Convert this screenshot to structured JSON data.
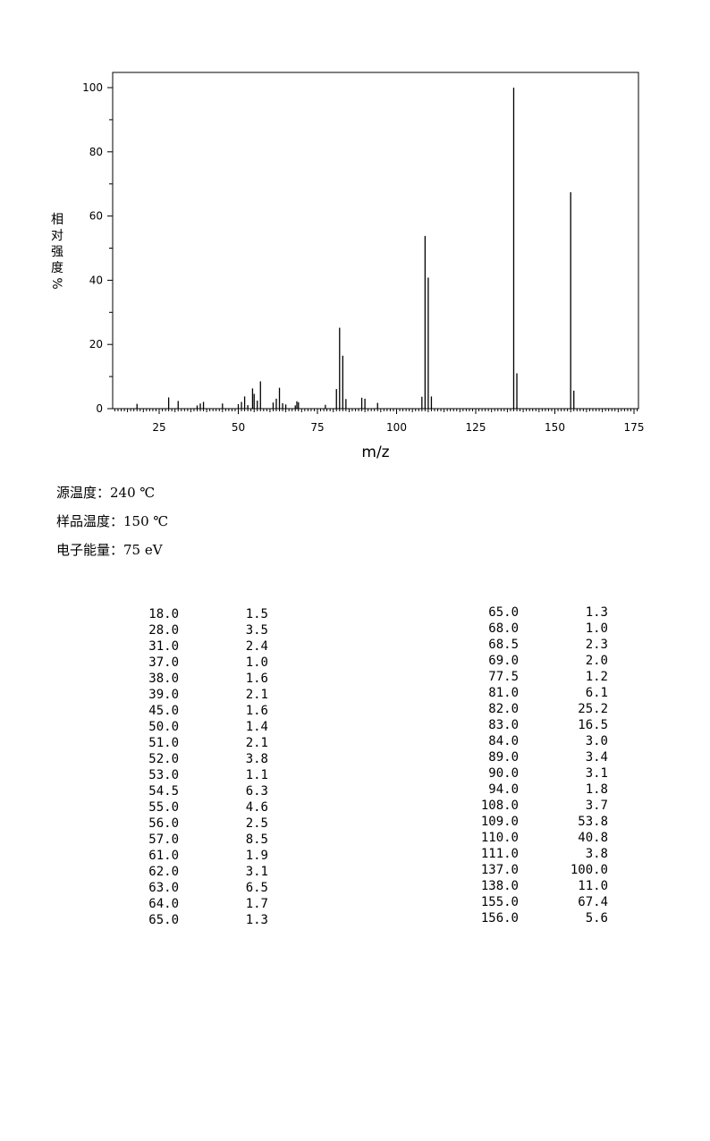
{
  "chart_data": {
    "type": "bar",
    "xlabel": "m/z",
    "ylabel": [
      "相",
      "对",
      "强",
      "度",
      "%"
    ],
    "xlim": [
      10,
      177
    ],
    "ylim": [
      0,
      100
    ],
    "xticks": [
      "25",
      "50",
      "75",
      "100",
      "125",
      "150",
      "175"
    ],
    "yticks": [
      "0",
      "20",
      "40",
      "60",
      "80",
      "100"
    ],
    "x": [
      18.0,
      28.0,
      31.0,
      37.0,
      38.0,
      39.0,
      45.0,
      50.0,
      51.0,
      52.0,
      53.0,
      54.5,
      55.0,
      56.0,
      57.0,
      61.0,
      62.0,
      63.0,
      64.0,
      65.0,
      68.0,
      68.5,
      69.0,
      77.5,
      81.0,
      82.0,
      83.0,
      84.0,
      89.0,
      90.0,
      94.0,
      108.0,
      109.0,
      110.0,
      111.0,
      137.0,
      138.0,
      155.0,
      156.0
    ],
    "values": [
      1.5,
      3.5,
      2.4,
      1.0,
      1.6,
      2.1,
      1.6,
      1.4,
      2.1,
      3.8,
      1.1,
      6.3,
      4.6,
      2.5,
      8.5,
      1.9,
      3.1,
      6.5,
      1.7,
      1.3,
      1.0,
      2.3,
      2.0,
      1.2,
      6.1,
      25.2,
      16.5,
      3.0,
      3.4,
      3.1,
      1.8,
      3.7,
      53.8,
      40.8,
      3.8,
      100.0,
      11.0,
      67.4,
      5.6
    ]
  },
  "conditions": [
    {
      "label": "源温度：",
      "value": "240 ℃"
    },
    {
      "label": "样品温度：",
      "value": "150 ℃"
    },
    {
      "label": "电子能量：",
      "value": "75 eV"
    }
  ],
  "peak_table": {
    "left": [
      {
        "mz": "18.0",
        "ab": "1.5"
      },
      {
        "mz": "28.0",
        "ab": "3.5"
      },
      {
        "mz": "31.0",
        "ab": "2.4"
      },
      {
        "mz": "37.0",
        "ab": "1.0"
      },
      {
        "mz": "38.0",
        "ab": "1.6"
      },
      {
        "mz": "39.0",
        "ab": "2.1"
      },
      {
        "mz": "45.0",
        "ab": "1.6"
      },
      {
        "mz": "50.0",
        "ab": "1.4"
      },
      {
        "mz": "51.0",
        "ab": "2.1"
      },
      {
        "mz": "52.0",
        "ab": "3.8"
      },
      {
        "mz": "53.0",
        "ab": "1.1"
      },
      {
        "mz": "54.5",
        "ab": "6.3"
      },
      {
        "mz": "55.0",
        "ab": "4.6"
      },
      {
        "mz": "56.0",
        "ab": "2.5"
      },
      {
        "mz": "57.0",
        "ab": "8.5"
      },
      {
        "mz": "61.0",
        "ab": "1.9"
      },
      {
        "mz": "62.0",
        "ab": "3.1"
      },
      {
        "mz": "63.0",
        "ab": "6.5"
      },
      {
        "mz": "64.0",
        "ab": "1.7"
      },
      {
        "mz": "65.0",
        "ab": "1.3"
      }
    ],
    "right": [
      {
        "mz": "65.0",
        "ab": "1.3"
      },
      {
        "mz": "68.0",
        "ab": "1.0"
      },
      {
        "mz": "68.5",
        "ab": "2.3"
      },
      {
        "mz": "69.0",
        "ab": "2.0"
      },
      {
        "mz": "77.5",
        "ab": "1.2"
      },
      {
        "mz": "81.0",
        "ab": "6.1"
      },
      {
        "mz": "82.0",
        "ab": "25.2"
      },
      {
        "mz": "83.0",
        "ab": "16.5"
      },
      {
        "mz": "84.0",
        "ab": "3.0"
      },
      {
        "mz": "89.0",
        "ab": "3.4"
      },
      {
        "mz": "90.0",
        "ab": "3.1"
      },
      {
        "mz": "94.0",
        "ab": "1.8"
      },
      {
        "mz": "108.0",
        "ab": "3.7"
      },
      {
        "mz": "109.0",
        "ab": "53.8"
      },
      {
        "mz": "110.0",
        "ab": "40.8"
      },
      {
        "mz": "111.0",
        "ab": "3.8"
      },
      {
        "mz": "137.0",
        "ab": "100.0"
      },
      {
        "mz": "138.0",
        "ab": "11.0"
      },
      {
        "mz": "155.0",
        "ab": "67.4"
      },
      {
        "mz": "156.0",
        "ab": "5.6"
      }
    ]
  }
}
